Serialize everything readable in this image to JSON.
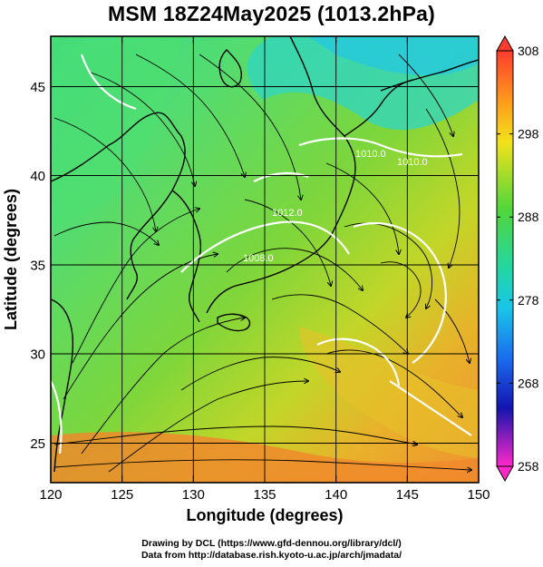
{
  "title": "MSM 18Z24May2025 (1013.2hPa)",
  "xaxis": {
    "label": "Longitude (degrees)",
    "ticks": [
      "120",
      "125",
      "130",
      "135",
      "140",
      "145",
      "150"
    ]
  },
  "yaxis": {
    "label": "Latitude  (degrees)",
    "ticks": [
      "25",
      "30",
      "35",
      "40",
      "45"
    ]
  },
  "colorbar": {
    "labels": [
      "308",
      "298",
      "288",
      "278",
      "268",
      "258"
    ]
  },
  "contour_labels": [
    "1010.0",
    "1010.0",
    "1012.0",
    "1008.0"
  ],
  "credit": {
    "line1": "Drawing by DCL (https://www.gfd-dennou.org/library/dcl/)",
    "line2": "Data from http://database.rish.kyoto-u.ac.jp/arch/jmadata/"
  }
}
